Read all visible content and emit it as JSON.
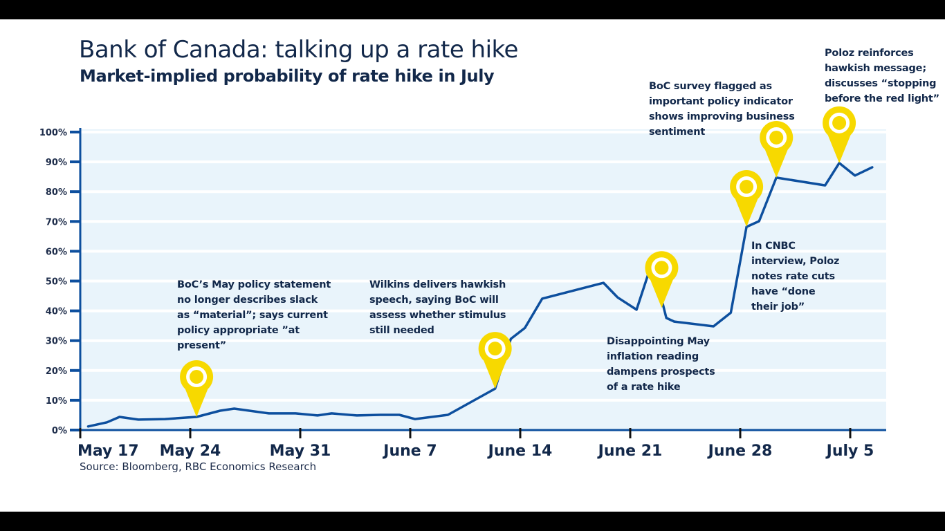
{
  "chart_data": {
    "type": "line",
    "title": "Bank of Canada: talking up a rate hike",
    "subtitle": "Market-implied probability of rate hike in July",
    "source": "Source: Bloomberg, RBC Economics Research",
    "xlabel": "",
    "ylabel": "",
    "ylim": [
      0,
      100
    ],
    "grid": true,
    "y_ticks": [
      "0%",
      "10%",
      "20%",
      "30%",
      "40%",
      "50%",
      "60%",
      "70%",
      "80%",
      "90%",
      "100%"
    ],
    "y_tick_values": [
      0,
      10,
      20,
      30,
      40,
      50,
      60,
      70,
      80,
      90,
      100
    ],
    "x_ticks": [
      "May 17",
      "May 24",
      "May 31",
      "June 7",
      "June 14",
      "June 21",
      "June 28",
      "July 5"
    ],
    "x_tick_days": [
      0,
      7,
      14,
      21,
      28,
      35,
      42,
      49
    ],
    "x_unit": "days since May 17",
    "xlim": [
      0,
      51
    ],
    "series": [
      {
        "name": "Market-implied probability of rate hike in July (%)",
        "color": "#0d4f9e",
        "x": [
          0.5,
          1.7,
          2.5,
          3.7,
          5.4,
          6.8,
          7.4,
          8.9,
          9.8,
          12.0,
          13.7,
          15.1,
          16.0,
          17.6,
          19.1,
          20.3,
          21.3,
          23.4,
          26.4,
          27.4,
          28.3,
          29.4,
          33.3,
          34.2,
          35.4,
          36.4,
          37.3,
          37.8,
          40.3,
          41.4,
          42.4,
          43.2,
          44.3,
          47.4,
          48.3,
          49.3,
          50.4
        ],
        "values": [
          1.2,
          2.6,
          4.4,
          3.5,
          3.7,
          4.2,
          4.4,
          6.5,
          7.2,
          5.6,
          5.6,
          4.9,
          5.6,
          4.9,
          5.1,
          5.1,
          3.7,
          5.1,
          13.9,
          30.6,
          34.3,
          44.1,
          49.4,
          44.5,
          40.4,
          56.4,
          37.6,
          36.4,
          34.8,
          39.4,
          68.2,
          70.1,
          84.7,
          82.1,
          89.6,
          85.4,
          88.2
        ]
      }
    ],
    "annotations": [
      {
        "marker": "pin",
        "x": 7.4,
        "y": 4.4,
        "text": "BoC’s May policy statement\nno longer describes slack\nas “material”; says current\npolicy appropriate ”at\npresent”"
      },
      {
        "marker": "pin",
        "x": 26.4,
        "y": 13.9,
        "text": "Wilkins delivers hawkish\nspeech, saying BoC will\nassess whether stimulus\nstill needed"
      },
      {
        "marker": "pin",
        "x": 37.0,
        "y": 41.0,
        "text": "Disappointing May\ninflation reading\ndampens prospects\nof a rate hike"
      },
      {
        "marker": "pin",
        "x": 42.4,
        "y": 68.2,
        "text": "In CNBC\ninterview, Poloz\nnotes rate cuts\nhave “done\ntheir job”"
      },
      {
        "marker": "pin",
        "x": 44.3,
        "y": 84.7,
        "text": "BoC survey flagged as\nimportant policy indicator\nshows improving business\nsentiment"
      },
      {
        "marker": "pin",
        "x": 48.3,
        "y": 89.6,
        "text": "Poloz reinforces\nhawkish message;\ndiscusses “stopping\nbefore the red light”"
      }
    ],
    "colors": {
      "line": "#0d4f9e",
      "axis": "#0d4f9e",
      "plot_bg": "#e9f4fb",
      "pin": "#f7d900",
      "text": "#12284a"
    }
  }
}
